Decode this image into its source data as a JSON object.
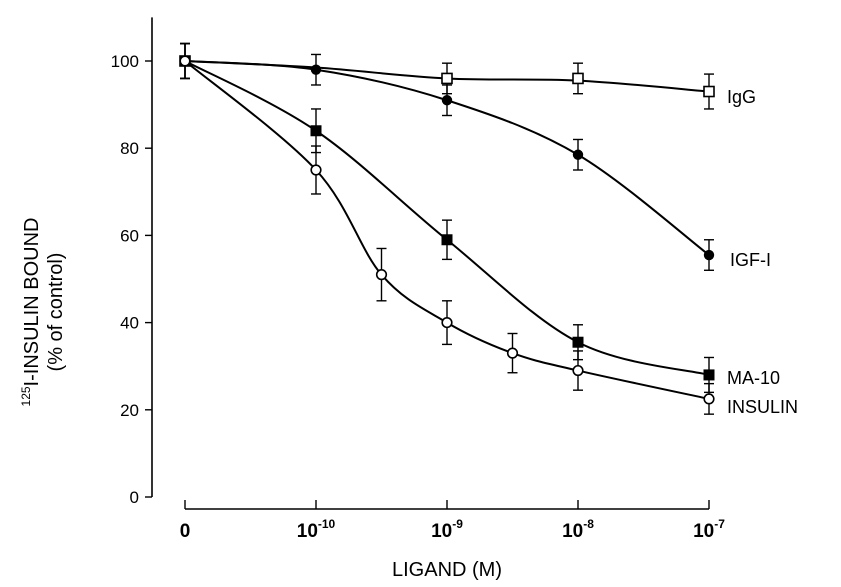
{
  "chart_data": {
    "type": "line",
    "xlabel": "LIGAND (M)",
    "ylabel": {
      "line1_sup": "125",
      "line1_main": "I-INSULIN BOUND",
      "line2": "(% of control)"
    },
    "ylim": [
      0,
      110
    ],
    "yticks": [
      "0",
      "20",
      "40",
      "60",
      "80",
      "100"
    ],
    "x_categories": [
      {
        "base": "0",
        "exp": ""
      },
      {
        "base": "10",
        "exp": "-10"
      },
      {
        "base": "10",
        "exp": "-9"
      },
      {
        "base": "10",
        "exp": "-8"
      },
      {
        "base": "10",
        "exp": "-7"
      }
    ],
    "series": [
      {
        "name": "IgG",
        "marker": "open-square",
        "points": [
          {
            "x": 0,
            "y": 100,
            "err": 4
          },
          {
            "x": 2,
            "y": 96,
            "err": 3.5
          },
          {
            "x": 3,
            "y": 96,
            "err": 3.5
          },
          {
            "x": 4,
            "y": 93,
            "err": 4
          }
        ],
        "curve": [
          [
            0,
            100
          ],
          [
            1,
            98.5
          ],
          [
            2,
            96
          ],
          [
            3,
            95.5
          ],
          [
            4,
            93
          ]
        ]
      },
      {
        "name": "IGF-I",
        "marker": "filled-circle",
        "points": [
          {
            "x": 0,
            "y": 100,
            "err": 4
          },
          {
            "x": 1,
            "y": 98,
            "err": 3.5
          },
          {
            "x": 2,
            "y": 91,
            "err": 3.5
          },
          {
            "x": 3,
            "y": 78.5,
            "err": 3.5
          },
          {
            "x": 4,
            "y": 55.5,
            "err": 3.5
          }
        ],
        "curve": [
          [
            0,
            100
          ],
          [
            1,
            98
          ],
          [
            2,
            91
          ],
          [
            3,
            78.5
          ],
          [
            4,
            55.5
          ]
        ]
      },
      {
        "name": "MA-10",
        "marker": "filled-square",
        "points": [
          {
            "x": 0,
            "y": 100,
            "err": 4
          },
          {
            "x": 1,
            "y": 84,
            "err": 5
          },
          {
            "x": 2,
            "y": 59,
            "err": 4.5
          },
          {
            "x": 3,
            "y": 35.5,
            "err": 4
          },
          {
            "x": 4,
            "y": 28,
            "err": 4
          }
        ],
        "curve": [
          [
            0,
            100
          ],
          [
            1,
            84
          ],
          [
            2,
            59
          ],
          [
            3,
            35.5
          ],
          [
            4,
            28
          ]
        ]
      },
      {
        "name": "INSULIN",
        "marker": "open-circle",
        "points": [
          {
            "x": 0,
            "y": 100,
            "err": 4
          },
          {
            "x": 1,
            "y": 75,
            "err": 5.5
          },
          {
            "x": 1.5,
            "y": 51,
            "err": 6
          },
          {
            "x": 2,
            "y": 40,
            "err": 5
          },
          {
            "x": 2.5,
            "y": 33,
            "err": 4.5
          },
          {
            "x": 3,
            "y": 29,
            "err": 4.5
          },
          {
            "x": 4,
            "y": 22.5,
            "err": 3.5
          }
        ],
        "curve": [
          [
            0,
            100
          ],
          [
            1,
            75
          ],
          [
            1.5,
            51
          ],
          [
            2,
            40
          ],
          [
            2.5,
            33
          ],
          [
            3,
            29
          ],
          [
            4,
            22.5
          ]
        ]
      }
    ],
    "legend": [
      "IgG",
      "IGF-I",
      "MA-10",
      "INSULIN"
    ]
  }
}
